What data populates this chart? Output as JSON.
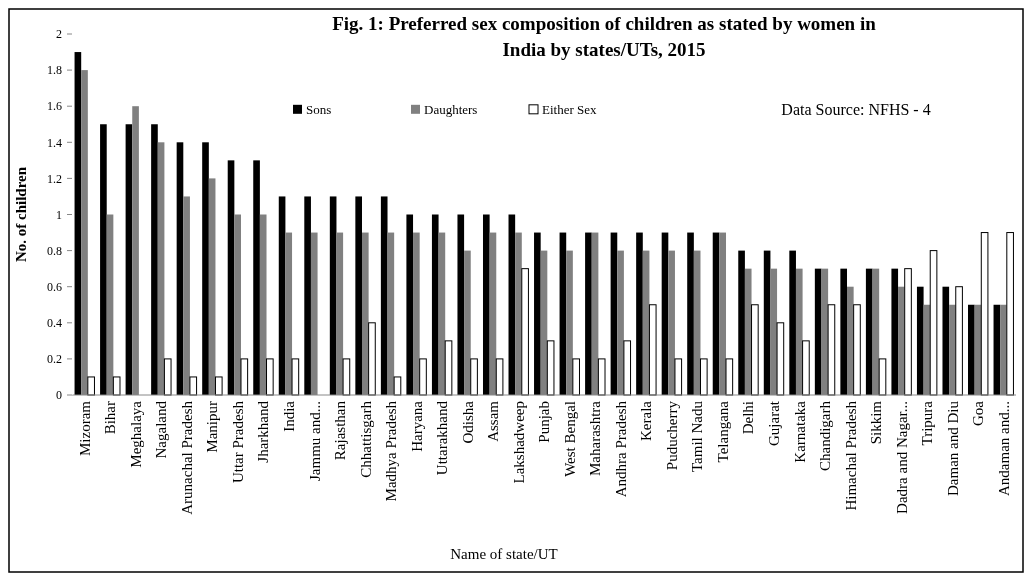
{
  "chart_data": {
    "type": "bar",
    "title": "Fig. 1: Preferred sex composition of children as stated by women in India by states/UTs, 2015",
    "xlabel": "Name of state/UT",
    "ylabel": "No. of children",
    "categories": [
      "Mizoram",
      "Bihar",
      "Meghalaya",
      "Nagaland",
      "Arunachal Pradesh",
      "Manipur",
      "Uttar Pradesh",
      "Jharkhand",
      "India",
      "Jammu and...",
      "Rajasthan",
      "Chhattisgarh",
      "Madhya Pradesh",
      "Haryana",
      "Uttarakhand",
      "Odisha",
      "Assam",
      "Lakshadweep",
      "Punjab",
      "West Bengal",
      "Maharashtra",
      "Andhra Pradesh",
      "Kerala",
      "Puducherry",
      "Tamil Nadu",
      "Telangana",
      "Delhi",
      "Gujarat",
      "Karnataka",
      "Chandigarh",
      "Himachal Pradesh",
      "Sikkim",
      "Dadra and Nagar...",
      "Tripura",
      "Daman and Diu",
      "Goa",
      "Andaman and..."
    ],
    "series": [
      {
        "name": "Sons",
        "color": "#000000",
        "values": [
          1.9,
          1.5,
          1.5,
          1.5,
          1.4,
          1.4,
          1.3,
          1.3,
          1.1,
          1.1,
          1.1,
          1.1,
          1.1,
          1.0,
          1.0,
          1.0,
          1.0,
          1.0,
          0.9,
          0.9,
          0.9,
          0.9,
          0.9,
          0.9,
          0.9,
          0.9,
          0.8,
          0.8,
          0.8,
          0.7,
          0.7,
          0.7,
          0.7,
          0.6,
          0.6,
          0.5,
          0.5
        ]
      },
      {
        "name": "Daughters",
        "color": "#808080",
        "values": [
          1.8,
          1.0,
          1.6,
          1.4,
          1.1,
          1.2,
          1.0,
          1.0,
          0.9,
          0.9,
          0.9,
          0.9,
          0.9,
          0.9,
          0.9,
          0.8,
          0.9,
          0.9,
          0.8,
          0.8,
          0.9,
          0.8,
          0.8,
          0.8,
          0.8,
          0.9,
          0.7,
          0.7,
          0.7,
          0.7,
          0.6,
          0.7,
          0.6,
          0.5,
          0.5,
          0.5,
          0.5
        ]
      },
      {
        "name": "Either Sex",
        "color": "#ffffff",
        "values": [
          0.1,
          0.1,
          0,
          0.2,
          0.1,
          0.1,
          0.2,
          0.2,
          0.2,
          0,
          0.2,
          0.4,
          0.1,
          0.2,
          0.3,
          0.2,
          0.2,
          0.7,
          0.3,
          0.2,
          0.2,
          0.3,
          0.5,
          0.2,
          0.2,
          0.2,
          0.5,
          0.4,
          0.3,
          0.5,
          0.5,
          0.2,
          0.7,
          0.8,
          0.6,
          0.9,
          0.9
        ]
      }
    ],
    "ylim": [
      0,
      2
    ],
    "yticks": [
      0,
      0.2,
      0.4,
      0.6,
      0.8,
      1,
      1.2,
      1.4,
      1.6,
      1.8,
      2
    ],
    "legend": "top",
    "annotations": [
      "Data Source: NFHS - 4"
    ]
  }
}
